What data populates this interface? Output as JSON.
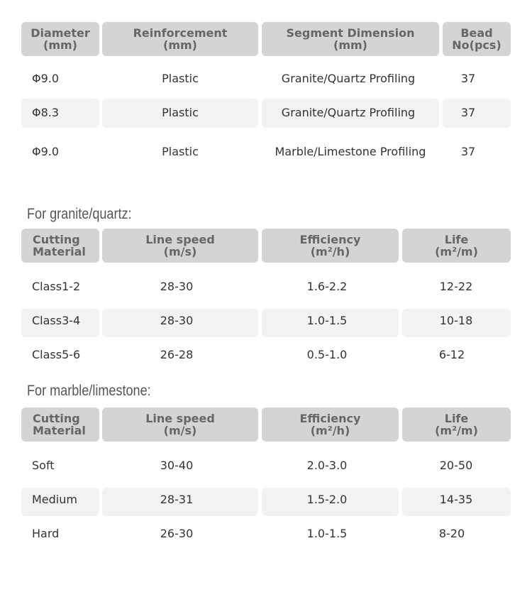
{
  "table1": {
    "headers": [
      {
        "line1": "Diameter",
        "line2": "(mm)"
      },
      {
        "line1": "Reinforcement",
        "line2": "(mm)"
      },
      {
        "line1": "Segment Dimension",
        "line2": "(mm)"
      },
      {
        "line1": "Bead",
        "line2": "No(pcs)"
      }
    ],
    "rows": [
      [
        "Φ9.0",
        "Plastic",
        "Granite/Quartz Profiling",
        "37"
      ],
      [
        "Φ8.3",
        "Plastic",
        "Granite/Quartz Profiling",
        "37"
      ],
      [
        "Φ9.0",
        "Plastic",
        "Marble/Limestone Profiling",
        "37"
      ]
    ]
  },
  "granite": {
    "title": "For granite/quartz:",
    "headers": [
      {
        "line1": "Cutting",
        "line2": "Material"
      },
      {
        "line1": "Line speed",
        "line2": "(m/s)"
      },
      {
        "line1": "Efficiency",
        "line2": "(m²/h)"
      },
      {
        "line1": "Life",
        "line2": "(m²/m)"
      }
    ],
    "rows": [
      [
        "Class1-2",
        "28-30",
        "1.6-2.2",
        "12-22"
      ],
      [
        "Class3-4",
        "28-30",
        "1.0-1.5",
        "10-18"
      ],
      [
        "Class5-6",
        "26-28",
        "0.5-1.0",
        "6-12"
      ]
    ]
  },
  "marble": {
    "title": "For marble/limestone:",
    "headers": [
      {
        "line1": "Cutting",
        "line2": "Material"
      },
      {
        "line1": "Line speed",
        "line2": "(m/s)"
      },
      {
        "line1": "Efficiency",
        "line2": "(m²/h)"
      },
      {
        "line1": "Life",
        "line2": "(m²/m)"
      }
    ],
    "rows": [
      [
        "Soft",
        "30-40",
        "2.0-3.0",
        "20-50"
      ],
      [
        "Medium",
        "28-31",
        "1.5-2.0",
        "14-35"
      ],
      [
        "Hard",
        "26-30",
        "1.0-1.5",
        "8-20"
      ]
    ]
  }
}
